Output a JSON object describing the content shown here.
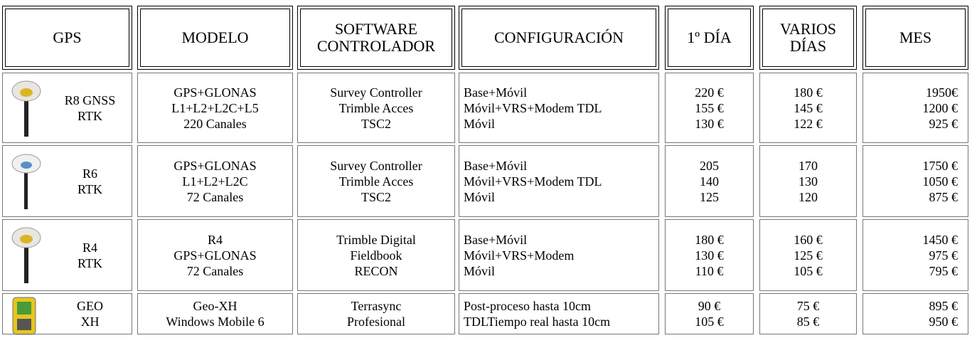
{
  "header": [
    [
      "GPS"
    ],
    [
      "MODELO"
    ],
    [
      "SOFTWARE",
      "CONTROLADOR"
    ],
    [
      "CONFIGURACIÓN"
    ],
    [
      "1º DÍA"
    ],
    [
      "VARIOS",
      "DÍAS"
    ],
    [
      "MES"
    ]
  ],
  "rows": [
    [
      [
        "R8 GNSS",
        "RTK"
      ],
      [
        "GPS+GLONAS",
        "L1+L2+L2C+L5",
        "220 Canales"
      ],
      [
        "Survey Controller",
        "Trimble Acces",
        "TSC2"
      ],
      [
        "Base+Móvil",
        "Móvil+VRS+Modem TDL",
        "Móvil"
      ],
      [
        "220 €",
        "155 €",
        "130 €"
      ],
      [
        "180 €",
        "145 €",
        "122 €"
      ],
      [
        "1950€",
        "1200 €",
        "925 €"
      ]
    ],
    [
      [
        "R6",
        "RTK"
      ],
      [
        "GPS+GLONAS",
        "L1+L2+L2C",
        "72 Canales"
      ],
      [
        "Survey Controller",
        "Trimble Acces",
        "TSC2"
      ],
      [
        "Base+Móvil",
        "Móvil+VRS+Modem TDL",
        "Móvil"
      ],
      [
        "205",
        "140",
        "125"
      ],
      [
        "170",
        "130",
        "120"
      ],
      [
        "1750 €",
        "1050 €",
        "875 €"
      ]
    ],
    [
      [
        "R4",
        "RTK"
      ],
      [
        "R4",
        "GPS+GLONAS",
        "72 Canales"
      ],
      [
        "Trimble Digital",
        "Fieldbook",
        "RECON"
      ],
      [
        "Base+Móvil",
        "Móvil+VRS+Modem",
        "Móvil"
      ],
      [
        "180 €",
        "130 €",
        "110 €"
      ],
      [
        "160 €",
        "125 €",
        "105 €"
      ],
      [
        "1450 €",
        "975 €",
        "795 €"
      ]
    ],
    [
      [
        "GEO",
        "XH"
      ],
      [
        "Geo-XH",
        "Windows Mobile 6"
      ],
      [
        "Terrasync",
        "Profesional"
      ],
      [
        "Post-proceso hasta 10cm",
        "TDLTiempo real hasta 10cm"
      ],
      [
        "90 €",
        "105 €"
      ],
      [
        "75 €",
        "85 €"
      ],
      [
        "895 €",
        "950 €"
      ]
    ]
  ]
}
